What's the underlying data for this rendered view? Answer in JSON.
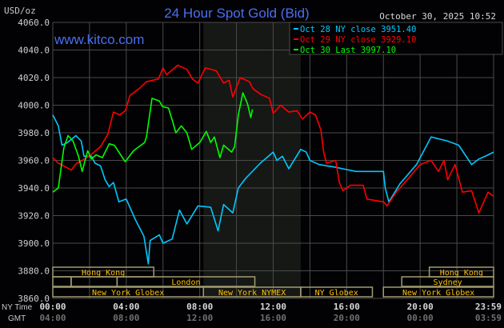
{
  "chart_data": {
    "type": "line",
    "title": "24 Hour Spot Gold (Bid)",
    "watermark": "www.kitco.com",
    "timestamp": "October 30, 2025 10:52",
    "ylabel": "USD/oz",
    "ylim": [
      3860,
      4060
    ],
    "yticks": [
      "4060.0",
      "4040.0",
      "4020.0",
      "4000.0",
      "3980.0",
      "3960.0",
      "3940.0",
      "3920.0",
      "3900.0",
      "3880.0",
      "3860.0"
    ],
    "xlim_hours": [
      0,
      24
    ],
    "grid": true,
    "legend_position": "top-right",
    "x_axis_rows": [
      {
        "label": "NY Time",
        "ticks": [
          "00:00",
          "04:00",
          "08:00",
          "12:00",
          "16:00",
          "20:00",
          "23:59"
        ]
      },
      {
        "label": "GMT",
        "ticks": [
          "04:00",
          "08:00",
          "12:00",
          "16:00",
          "20:00",
          "00:00",
          "03:59"
        ]
      }
    ],
    "shaded_hours": [
      8.2,
      13.5
    ],
    "series": [
      {
        "name": "Oct 28 NY close 3951.40",
        "color": "#00c8ff",
        "x": [
          0,
          0.3,
          0.5,
          0.8,
          1.26,
          1.55,
          1.7,
          2.1,
          2.3,
          2.6,
          2.85,
          3.07,
          3.3,
          3.6,
          4.0,
          4.5,
          4.96,
          5.2,
          5.3,
          5.8,
          6.0,
          6.5,
          6.9,
          7.3,
          7.9,
          8.6,
          9.0,
          9.3,
          9.8,
          10.1,
          10.5,
          11.3,
          12.0,
          12.2,
          12.5,
          12.85,
          13.5,
          13.8,
          14.0,
          14.5,
          15.4,
          16.5,
          18.0,
          18.1,
          18.3,
          18.9,
          19.8,
          20.6,
          21.5,
          22.1,
          22.8,
          23.2,
          23.7,
          24.0
        ],
        "y": [
          3993,
          3985,
          3971,
          3973,
          3978,
          3974,
          3963,
          3963,
          3958,
          3956,
          3946,
          3941,
          3944,
          3930,
          3932,
          3917,
          3905,
          3885,
          3902,
          3906,
          3900,
          3903,
          3924,
          3914,
          3927,
          3926,
          3909,
          3928,
          3922,
          3940,
          3947,
          3958,
          3966,
          3960,
          3963,
          3954,
          3968,
          3966,
          3960,
          3957,
          3955,
          3952,
          3952,
          3940,
          3930,
          3943,
          3957,
          3977,
          3974,
          3971,
          3957,
          3961,
          3964,
          3966
        ]
      },
      {
        "name": "Oct 29 NY close 3929.10",
        "color": "#ff0000",
        "x": [
          0,
          0.3,
          0.6,
          1.0,
          1.3,
          1.6,
          2.06,
          2.6,
          3.0,
          3.3,
          3.65,
          3.95,
          4.2,
          4.7,
          5.1,
          5.75,
          6.0,
          6.2,
          6.8,
          7.3,
          7.6,
          7.9,
          8.3,
          8.9,
          9.3,
          9.6,
          9.8,
          10.2,
          10.7,
          10.9,
          11.3,
          11.8,
          12.0,
          12.4,
          12.85,
          13.3,
          13.6,
          14.0,
          14.3,
          14.6,
          14.75,
          14.9,
          15.4,
          15.6,
          15.8,
          16.2,
          16.9,
          17.1,
          18.0,
          18.2,
          18.7,
          19.3,
          20.0,
          20.6,
          21.0,
          21.3,
          21.5,
          21.9,
          22.3,
          22.8,
          23.2,
          23.7,
          24.0
        ],
        "y": [
          3962,
          3958,
          3956,
          3953,
          3958,
          3960,
          3964,
          3970,
          3979,
          3995,
          3993,
          3996,
          4007,
          4012,
          4017,
          4019,
          4027,
          4022,
          4029,
          4026,
          4019,
          4016,
          4027,
          4025,
          4016,
          4018,
          4006,
          4020,
          4017,
          4012,
          4008,
          4005,
          3994,
          4000,
          3995,
          3996,
          3990,
          3995,
          3993,
          3982,
          3966,
          3958,
          3960,
          3944,
          3938,
          3942,
          3942,
          3932,
          3930,
          3927,
          3937,
          3946,
          3957,
          3960,
          3952,
          3960,
          3946,
          3957,
          3937,
          3938,
          3922,
          3937,
          3934
        ]
      },
      {
        "name": "Oct 30 Last 3997.10",
        "color": "#00ff00",
        "x": [
          0,
          0.3,
          0.6,
          0.83,
          1.1,
          1.4,
          1.6,
          1.9,
          2.1,
          2.35,
          2.7,
          3.07,
          3.35,
          3.94,
          4.4,
          5.0,
          5.1,
          5.4,
          5.8,
          5.97,
          6.3,
          6.55,
          6.7,
          7.0,
          7.3,
          7.56,
          8.0,
          8.36,
          8.6,
          8.8,
          9.1,
          9.3,
          9.74,
          9.9,
          10.1,
          10.35,
          10.6,
          10.78,
          10.87
        ],
        "y": [
          3937,
          3940,
          3969,
          3978,
          3974,
          3963,
          3952,
          3967,
          3961,
          3964,
          3962,
          3972,
          3971,
          3959,
          3967,
          3973,
          3977,
          4005,
          4003,
          3999,
          3998,
          3987,
          3980,
          3985,
          3980,
          3968,
          3973,
          3981,
          3973,
          3977,
          3962,
          3971,
          3966,
          3970,
          3993,
          4009,
          4001,
          3991,
          3997
        ]
      }
    ],
    "sessions": [
      {
        "label": "Hong Kong",
        "row": 0,
        "start": 0,
        "end": 5.5
      },
      {
        "label": "Hong Kong",
        "row": 0,
        "start": 20.5,
        "end": 24
      },
      {
        "label": "",
        "row": 1,
        "start": 0,
        "end": 1
      },
      {
        "label": "",
        "row": 1,
        "start": 1,
        "end": 3.5
      },
      {
        "label": "London",
        "row": 1,
        "start": 3.5,
        "end": 11
      },
      {
        "label": "Sydney",
        "row": 1,
        "start": 19,
        "end": 24
      },
      {
        "label": "New York Globex",
        "row": 2,
        "start": 0,
        "end": 8.2
      },
      {
        "label": "New York NYMEX",
        "row": 2,
        "start": 8.2,
        "end": 13.5
      },
      {
        "label": "NY Globex",
        "row": 2,
        "start": 13.5,
        "end": 17.4
      },
      {
        "label": "New York Globex",
        "row": 2,
        "start": 18,
        "end": 24
      }
    ],
    "colors": {
      "title": "#4a6ef0",
      "watermark": "#4a6ef0",
      "session_text": "#ffc000",
      "session_border": "#a09c70",
      "grid": "#4a4a4a",
      "shade": "#161816"
    }
  }
}
